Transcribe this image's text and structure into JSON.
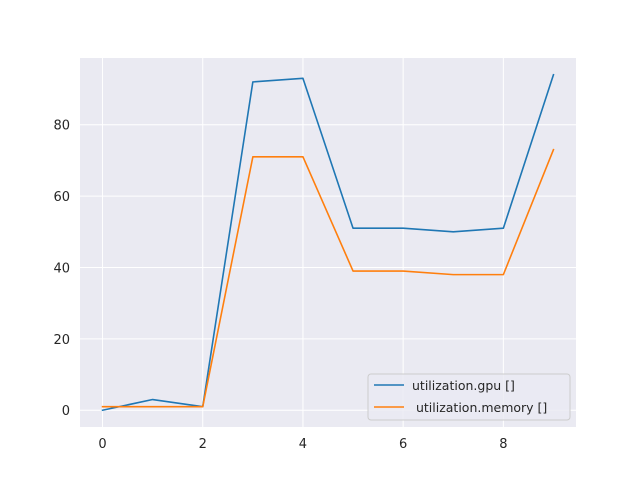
{
  "chart_data": {
    "type": "line",
    "title": "",
    "xlabel": "",
    "ylabel": "",
    "x": [
      0,
      1,
      2,
      3,
      4,
      5,
      6,
      7,
      8,
      9
    ],
    "xlim": [
      -0.45,
      9.45
    ],
    "ylim": [
      -4.7,
      98.7
    ],
    "xticks": [
      0,
      2,
      4,
      6,
      8
    ],
    "yticks": [
      0,
      20,
      40,
      60,
      80
    ],
    "grid": true,
    "legend_position": "bottom-right",
    "style": {
      "background": "#eaeaf2",
      "grid_color": "#ffffff"
    },
    "series": [
      {
        "name": "utilization.gpu []",
        "color": "#1f77b4",
        "values": [
          0,
          3,
          1,
          92,
          93,
          51,
          51,
          50,
          51,
          94
        ]
      },
      {
        "name": " utilization.memory []",
        "color": "#ff7f0e",
        "values": [
          1,
          1,
          1,
          71,
          71,
          39,
          39,
          38,
          38,
          73
        ]
      }
    ]
  }
}
